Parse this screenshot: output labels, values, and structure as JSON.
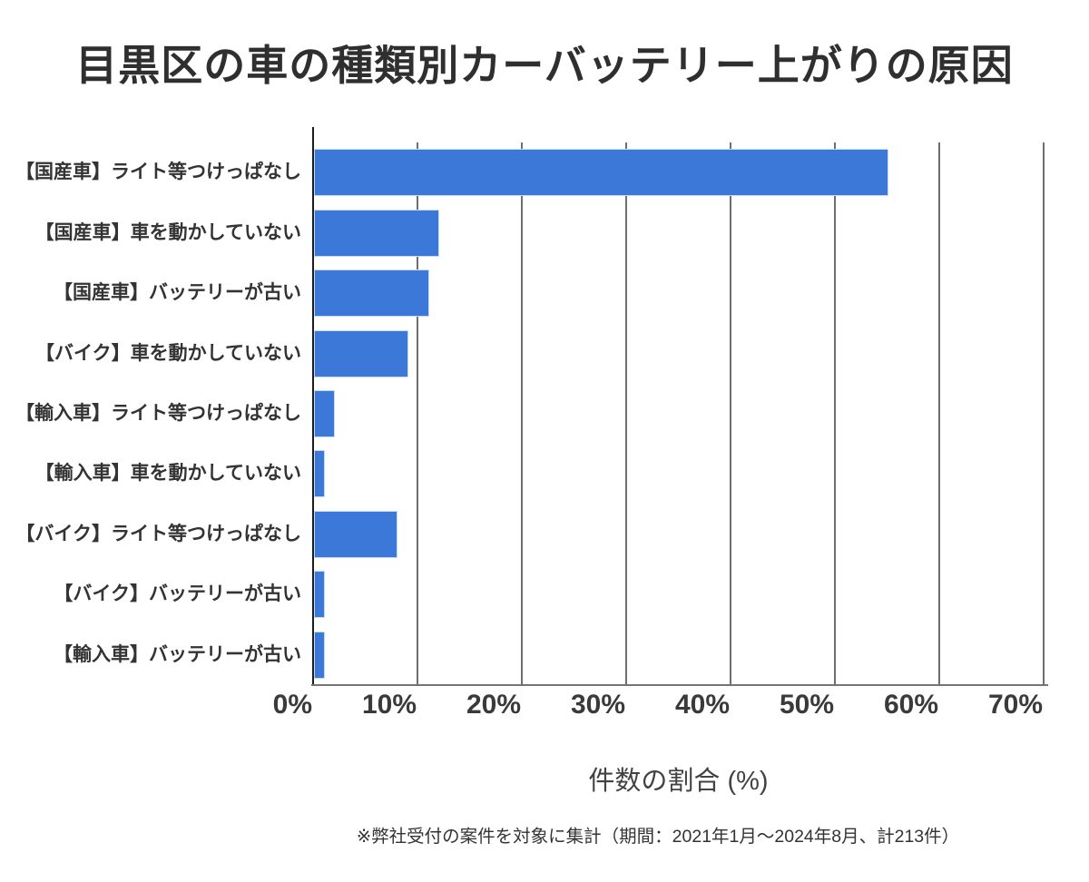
{
  "title": "目黒区の車の種類別カーバッテリー上がりの原因",
  "chart_data": {
    "type": "bar",
    "orientation": "horizontal",
    "title": "目黒区の車の種類別カーバッテリー上がりの原因",
    "categories": [
      "【国産車】ライト等つけっぱなし",
      "【国産車】車を動かしていない",
      "【国産車】バッテリーが古い",
      "【バイク】車を動かしていない",
      "【輸入車】ライト等つけっぱなし",
      "【輸入車】車を動かしていない",
      "【バイク】ライト等つけっぱなし",
      "【バイク】バッテリーが古い",
      "【輸入車】バッテリーが古い"
    ],
    "values": [
      55,
      12,
      11,
      9,
      2,
      1,
      8,
      1,
      1
    ],
    "unit": "%",
    "xlabel": "件数の割合 (%)",
    "xlim": [
      0,
      70
    ],
    "xtick_labels": [
      "0%",
      "10%",
      "20%",
      "30%",
      "40%",
      "50%",
      "60%",
      "70%"
    ],
    "xtick_values": [
      0,
      10,
      20,
      30,
      40,
      50,
      60,
      70
    ],
    "grid": true,
    "legend": false,
    "colors": {
      "bar": "#3c78d8",
      "bar_edge": "#c9daf8",
      "gridline": "#6e6e6e",
      "y_axis_line": "#1c1c1c",
      "x_axis_line": "#757575",
      "title_text": "#2f2f2f",
      "label_text": "#333333",
      "tick_text": "#3a3a3a",
      "background": "#ffffff"
    }
  },
  "footnote": "※弊社受付の案件を対象に集計（期間：2021年1月～2024年8月、計213件）"
}
